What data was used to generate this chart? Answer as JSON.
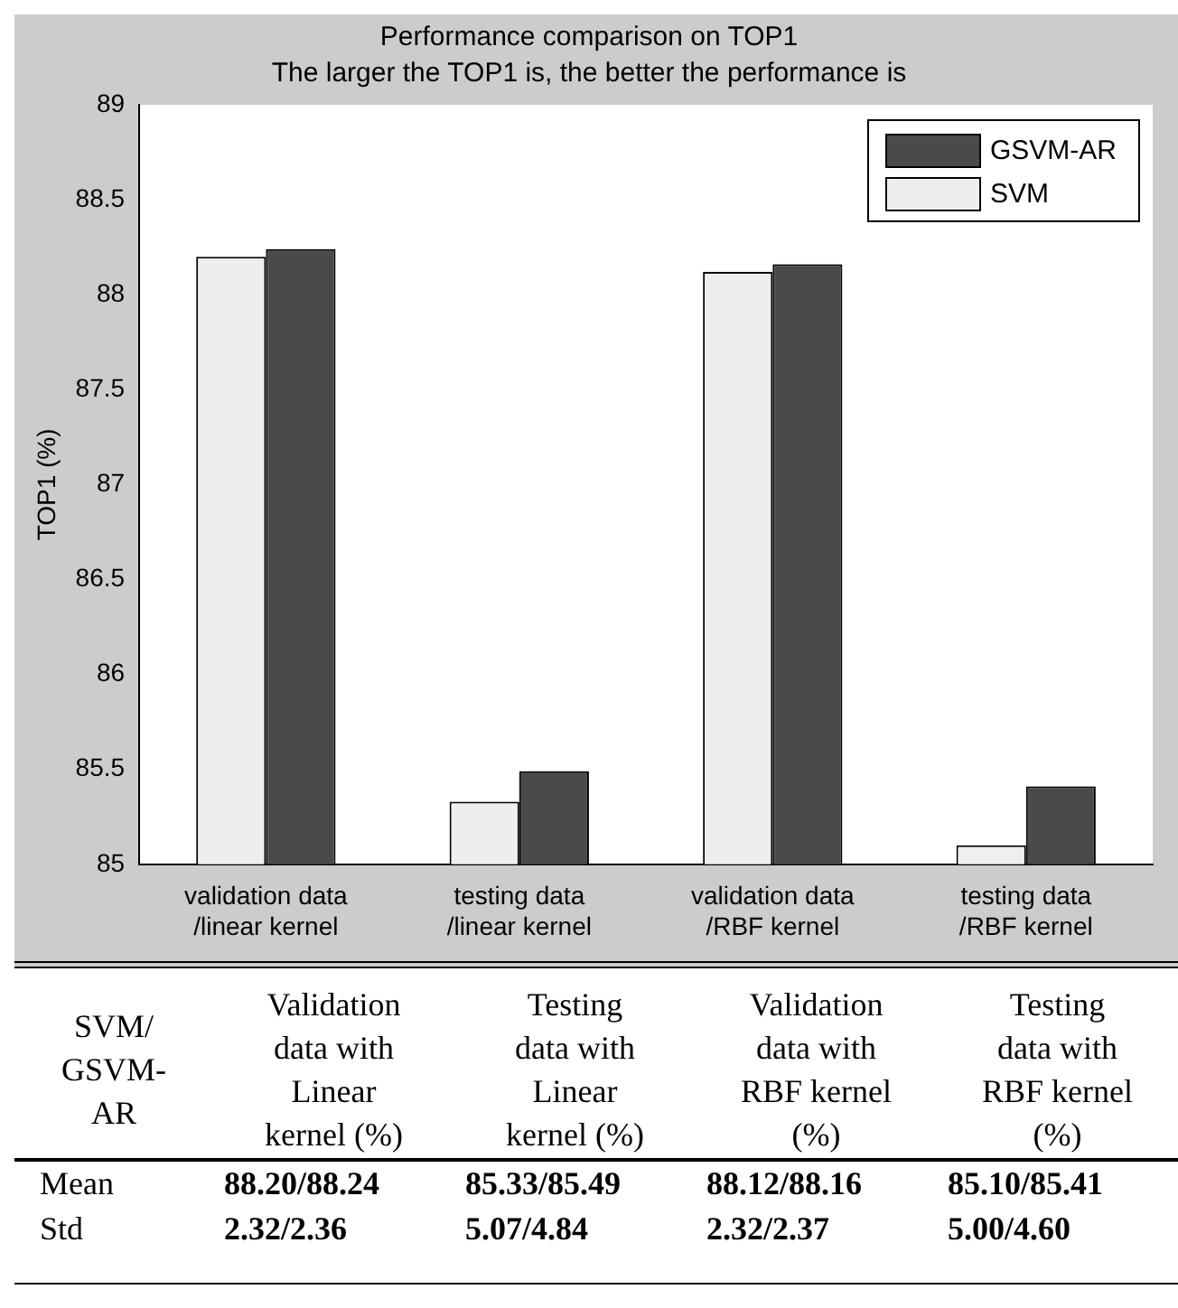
{
  "chart_data": {
    "type": "bar",
    "title": "Performance comparison on TOP1",
    "subtitle": "The larger the TOP1 is, the better the performance is",
    "ylabel": "TOP1 (%)",
    "categories": [
      "validation data\n/linear kernel",
      "testing data\n/linear kernel",
      "validation data\n/RBF kernel",
      "testing data\n/RBF kernel"
    ],
    "series": [
      {
        "name": "SVM",
        "color": "#eeeeee",
        "values": [
          88.2,
          85.33,
          88.12,
          85.1
        ]
      },
      {
        "name": "GSVM-AR",
        "color": "#4a4a4a",
        "values": [
          88.24,
          85.49,
          88.16,
          85.41
        ]
      }
    ],
    "ylim": [
      85,
      89
    ],
    "yticks": [
      85,
      85.5,
      86,
      86.5,
      87,
      87.5,
      88,
      88.5,
      89
    ],
    "grid": false,
    "legend": "top right",
    "annotations": [
      "SVM/\nGSVM-\nAR",
      "Validation\ndata with\nLinear\nkernel (%)",
      "Testing\ndata with\nLinear\nkernel (%)",
      "Validation\ndata with\nRBF kernel\n(%)",
      "Testing\ndata with\nRBF kernel\n(%)",
      "Mean",
      "88.20/88.24",
      "85.33/85.49",
      "88.12/88.16",
      "85.10/85.41",
      "Std",
      "2.32/2.36",
      "5.07/4.84",
      "2.32/2.37",
      "5.00/4.60"
    ]
  }
}
